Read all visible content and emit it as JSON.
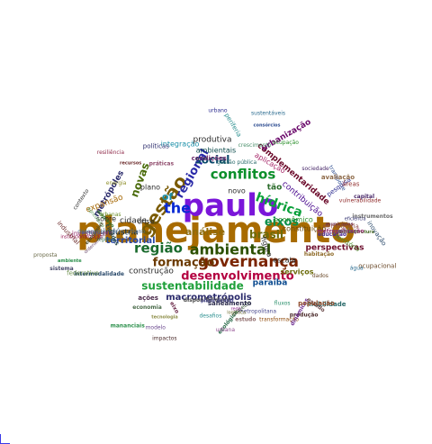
{
  "words": [
    {
      "text": "planejamento",
      "color": "#a86b00"
    },
    {
      "text": "paulo",
      "color": "#7a16d9"
    },
    {
      "text": "governança",
      "color": "#7b2500"
    },
    {
      "text": "gestão",
      "color": "#7a5a00"
    },
    {
      "text": "ambiental",
      "color": "#2b4f00"
    },
    {
      "text": "região",
      "color": "#1a6b2d"
    },
    {
      "text": "desenvolvimento",
      "color": "#b30040"
    },
    {
      "text": "sustentabilidade",
      "color": "#1fa03a"
    },
    {
      "text": "formação",
      "color": "#6b3a00"
    },
    {
      "text": "macrometrópolis",
      "color": "#2a2a6b"
    },
    {
      "text": "regional",
      "color": "#2a2aa8"
    },
    {
      "text": "conflitos",
      "color": "#0a8f2a"
    },
    {
      "text": "the",
      "color": "#0a2ad4"
    },
    {
      "text": "hídrica",
      "color": "#0aa03a"
    },
    {
      "text": "social",
      "color": "#0a4a6b"
    },
    {
      "text": "novas",
      "color": "#4a6b0a"
    },
    {
      "text": "eixos",
      "color": "#0a8f4a"
    },
    {
      "text": "análise",
      "color": "#8f6b0a"
    },
    {
      "text": "brasil",
      "color": "#6b6b0a"
    },
    {
      "text": "territorial",
      "color": "#2a4aa8"
    },
    {
      "text": "of",
      "color": "#1a8fa8"
    },
    {
      "text": "integração",
      "color": "#1a8fa8"
    },
    {
      "text": "produtiva",
      "color": "#2a2a2a"
    },
    {
      "text": "metrópoles",
      "color": "#2a2a6b"
    },
    {
      "text": "cidade",
      "color": "#2a2a2a"
    },
    {
      "text": "construção",
      "color": "#2a2a2a"
    },
    {
      "text": "paraíba",
      "color": "#0a4a8f"
    },
    {
      "text": "complementaridade",
      "color": "#6b0a2a"
    },
    {
      "text": "urbanização",
      "color": "#6b0a6b"
    },
    {
      "text": "contribuição",
      "color": "#4a0a8f"
    },
    {
      "text": "perspectivas",
      "color": "#6b0a2a"
    },
    {
      "text": "econômico",
      "color": "#2a8f2a"
    },
    {
      "text": "constituição",
      "color": "#6b4a0a"
    },
    {
      "text": "ambientais",
      "color": "#0a4a4a"
    },
    {
      "text": "indústria",
      "color": "#0a2a4a"
    },
    {
      "text": "sobre",
      "color": "#2a2a2a"
    },
    {
      "text": "plano",
      "color": "#2a2a2a"
    },
    {
      "text": "crise",
      "color": "#2a2a2a"
    },
    {
      "text": "novo",
      "color": "#2a2a2a"
    },
    {
      "text": "serviços",
      "color": "#6b6b0a"
    },
    {
      "text": "expansão",
      "color": "#a86b0a"
    },
    {
      "text": "tão",
      "color": "#2a6b2a"
    },
    {
      "text": "aplicação",
      "color": "#a82a6b"
    },
    {
      "text": "figura",
      "color": "#2a2a2a"
    },
    {
      "text": "escala",
      "color": "#2a2a2a"
    },
    {
      "text": "urbano",
      "color": "#2a2a8f"
    },
    {
      "text": "sustentáveis",
      "color": "#2a6b8f"
    },
    {
      "text": "vulnerabilidade",
      "color": "#8f2a2a"
    },
    {
      "text": "transformação",
      "color": "#8f4a0a"
    },
    {
      "text": "metropolitana",
      "color": "#4a4a8f"
    },
    {
      "text": "institucionalização",
      "color": "#8f0a4a"
    },
    {
      "text": "sociedade",
      "color": "#4a2a6b"
    },
    {
      "text": "desenvolvimento urbano",
      "color": "#4a6b8f"
    },
    {
      "text": "ocupacional",
      "color": "#6b4a2a"
    },
    {
      "text": "intermodalidade",
      "color": "#2a4a6b"
    },
    {
      "text": "municípios",
      "color": "#6b2a4a"
    },
    {
      "text": "produção",
      "color": "#4a2a2a"
    },
    {
      "text": "ecológica",
      "color": "#2a6b4a"
    },
    {
      "text": "logística",
      "color": "#6b6b2a"
    },
    {
      "text": "políticas",
      "color": "#2a2a6b"
    },
    {
      "text": "investimento",
      "color": "#8f2a6b"
    },
    {
      "text": "disponibilidade",
      "color": "#4a4a4a"
    },
    {
      "text": "periferia",
      "color": "#2a8f8f"
    },
    {
      "text": "recursos",
      "color": "#6b2a2a"
    },
    {
      "text": "projetos",
      "color": "#2a4a2a"
    },
    {
      "text": "educação",
      "color": "#4a2a8f"
    },
    {
      "text": "demografia",
      "color": "#8f4a4a"
    },
    {
      "text": "mobilidade",
      "color": "#2a6b6b"
    },
    {
      "text": "dinâmicas",
      "color": "#6b2a8f"
    },
    {
      "text": "território",
      "color": "#4a8f2a"
    },
    {
      "text": "habitação",
      "color": "#8f6b2a"
    },
    {
      "text": "saneamento",
      "color": "#2a2a4a"
    },
    {
      "text": "infraestrutura",
      "color": "#4a6b2a"
    },
    {
      "text": "ordenamento",
      "color": "#6b4a6b"
    },
    {
      "text": "mananciais",
      "color": "#2a8f4a"
    },
    {
      "text": "energia",
      "color": "#8f8f2a"
    },
    {
      "text": "agricultura",
      "color": "#4a8f4a"
    },
    {
      "text": "transporte",
      "color": "#2a4a8f"
    },
    {
      "text": "industrial",
      "color": "#6b2a2a"
    },
    {
      "text": "resiliência",
      "color": "#8f2a4a"
    },
    {
      "text": "contexto",
      "color": "#2a2a2a"
    },
    {
      "text": "sistema",
      "color": "#4a4a6b"
    },
    {
      "text": "proposta",
      "color": "#6b6b4a"
    },
    {
      "text": "emprego",
      "color": "#2a6b2a"
    },
    {
      "text": "condições",
      "color": "#6b2a6b"
    },
    {
      "text": "ações",
      "color": "#4a2a4a"
    },
    {
      "text": "fluxos",
      "color": "#2a8f6b"
    },
    {
      "text": "água",
      "color": "#2a6b8f"
    },
    {
      "text": "rede",
      "color": "#8f2a8f"
    },
    {
      "text": "urbanas",
      "color": "#6b8f2a"
    },
    {
      "text": "cidades",
      "color": "#2a4a4a"
    },
    {
      "text": "capital",
      "color": "#4a2a6b"
    },
    {
      "text": "estado",
      "color": "#6b4a4a"
    },
    {
      "text": "pesquisa",
      "color": "#2a2a8f"
    },
    {
      "text": "população",
      "color": "#8f4a2a"
    },
    {
      "text": "economia",
      "color": "#4a6b4a"
    },
    {
      "text": "ocupação",
      "color": "#2a8f2a"
    },
    {
      "text": "áreas",
      "color": "#8f2a2a"
    },
    {
      "text": "plano diretor",
      "color": "#4a4a8f"
    },
    {
      "text": "instrumentos",
      "color": "#6b6b6b"
    },
    {
      "text": "regiões",
      "color": "#2a6b4a"
    },
    {
      "text": "estudo",
      "color": "#8f6b6b"
    },
    {
      "text": "questões",
      "color": "#4a8f8f"
    },
    {
      "text": "eixo",
      "color": "#6b2a4a"
    },
    {
      "text": "inovação",
      "color": "#2a4a6b"
    },
    {
      "text": "tecnologia",
      "color": "#8f8f4a"
    },
    {
      "text": "impactos",
      "color": "#4a2a2a"
    },
    {
      "text": "desafios",
      "color": "#2a8f8f"
    },
    {
      "text": "modelo",
      "color": "#6b4a8f"
    },
    {
      "text": "práticas",
      "color": "#8f4a6b"
    },
    {
      "text": "gestão pública",
      "color": "#2a6b6b"
    },
    {
      "text": "economias",
      "color": "#4a4a2a"
    },
    {
      "text": "ambiente",
      "color": "#2a8f4a"
    },
    {
      "text": "metropolização",
      "color": "#8f2a6b"
    },
    {
      "text": "arranjos",
      "color": "#4a6b8f"
    },
    {
      "text": "federativo",
      "color": "#6b8f4a"
    },
    {
      "text": "consórcios",
      "color": "#2a4a8f"
    },
    {
      "text": "avaliação",
      "color": "#8f6b4a"
    },
    {
      "text": "crescimento",
      "color": "#4a8f6b"
    },
    {
      "text": "dados",
      "color": "#6b4a2a"
    },
    {
      "text": "eficiência",
      "color": "#2a2a6b"
    },
    {
      "text": "urbana",
      "color": "#8f4a8f"
    }
  ]
}
